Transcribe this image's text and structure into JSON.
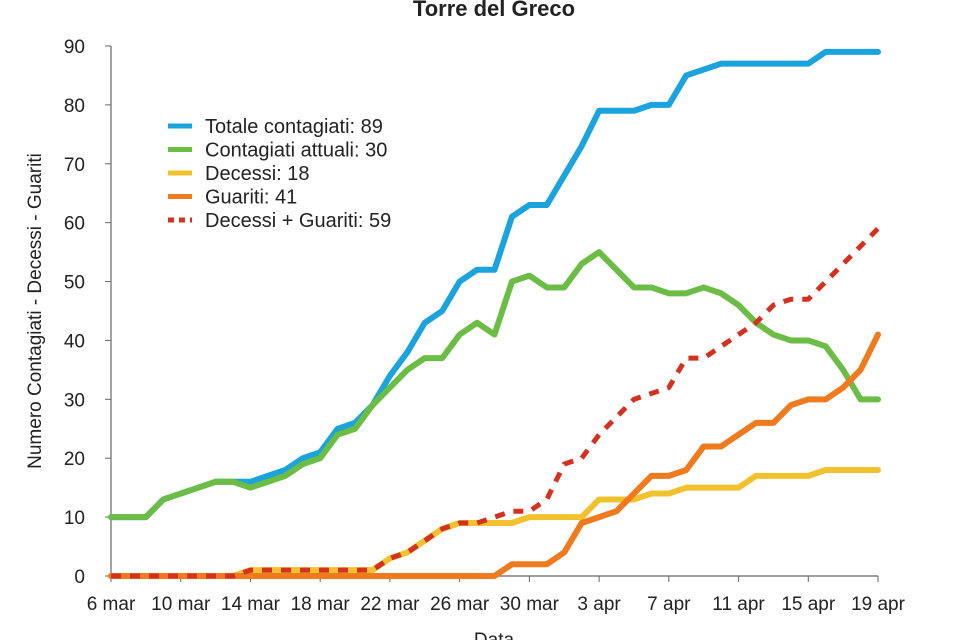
{
  "chart_data": {
    "type": "line",
    "title": "Torre del Greco",
    "xlabel": "Data",
    "ylabel": "Numero Contagiati - Decessi - Guariti",
    "ylim": [
      0,
      90
    ],
    "yticks": [
      "0",
      "10",
      "20",
      "30",
      "40",
      "50",
      "60",
      "70",
      "80",
      "90"
    ],
    "x_tick_labels": [
      "6 mar",
      "10 mar",
      "14 mar",
      "18 mar",
      "22 mar",
      "26 mar",
      "30 mar",
      "3 apr",
      "7 apr",
      "11 apr",
      "15 apr",
      "19 apr"
    ],
    "x_tick_positions": [
      0,
      4,
      8,
      12,
      16,
      20,
      24,
      28,
      32,
      36,
      40,
      44
    ],
    "grid": false,
    "legend_position": "top-left",
    "series": [
      {
        "name": "Totale contagiati",
        "legend_label": "Totale contagiati: 89",
        "color": "#1aa3dd",
        "dashed": false,
        "values": [
          10,
          10,
          10,
          13,
          14,
          15,
          16,
          16,
          16,
          17,
          18,
          20,
          21,
          25,
          26,
          29,
          34,
          38,
          43,
          45,
          50,
          52,
          52,
          61,
          63,
          63,
          68,
          73,
          79,
          79,
          79,
          80,
          80,
          85,
          86,
          87,
          87,
          87,
          87,
          87,
          87,
          89,
          89,
          89,
          89
        ]
      },
      {
        "name": "Contagiati attuali",
        "legend_label": "Contagiati attuali: 30",
        "color": "#6cbd45",
        "dashed": false,
        "values": [
          10,
          10,
          10,
          13,
          14,
          15,
          16,
          16,
          15,
          16,
          17,
          19,
          20,
          24,
          25,
          29,
          32,
          35,
          37,
          37,
          41,
          43,
          41,
          50,
          51,
          49,
          49,
          53,
          55,
          52,
          49,
          49,
          48,
          48,
          49,
          48,
          46,
          43,
          41,
          40,
          40,
          39,
          35,
          30,
          30
        ]
      },
      {
        "name": "Decessi",
        "legend_label": "Decessi: 18",
        "color": "#f2c12e",
        "dashed": false,
        "values": [
          0,
          0,
          0,
          0,
          0,
          0,
          0,
          0,
          1,
          1,
          1,
          1,
          1,
          1,
          1,
          1,
          3,
          4,
          6,
          8,
          9,
          9,
          9,
          9,
          10,
          10,
          10,
          10,
          13,
          13,
          13,
          14,
          14,
          15,
          15,
          15,
          15,
          17,
          17,
          17,
          17,
          18,
          18,
          18,
          18
        ]
      },
      {
        "name": "Guariti",
        "legend_label": "Guariti: 41",
        "color": "#f07a1e",
        "dashed": false,
        "values": [
          0,
          0,
          0,
          0,
          0,
          0,
          0,
          0,
          0,
          0,
          0,
          0,
          0,
          0,
          0,
          0,
          0,
          0,
          0,
          0,
          0,
          0,
          0,
          2,
          2,
          2,
          4,
          9,
          10,
          11,
          14,
          17,
          17,
          18,
          22,
          22,
          24,
          26,
          26,
          29,
          30,
          30,
          32,
          35,
          41
        ]
      },
      {
        "name": "Decessi + Guariti",
        "legend_label": "Decessi + Guariti: 59",
        "color": "#d4321e",
        "dashed": true,
        "values": [
          0,
          0,
          0,
          0,
          0,
          0,
          0,
          0,
          1,
          1,
          1,
          1,
          1,
          1,
          1,
          1,
          3,
          4,
          6,
          8,
          9,
          9,
          10,
          11,
          11,
          13,
          19,
          20,
          24,
          27,
          30,
          31,
          32,
          37,
          37,
          39,
          41,
          43,
          46,
          47,
          47,
          50,
          53,
          56,
          59
        ]
      }
    ]
  }
}
